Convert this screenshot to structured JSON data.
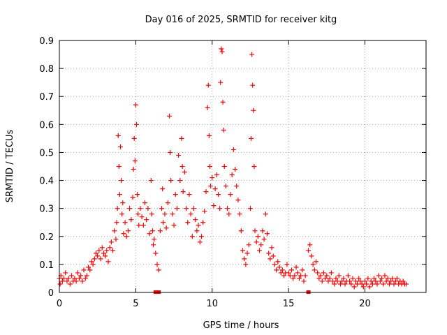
{
  "colors": {
    "series": "#ff0000",
    "axis": "#000000",
    "grid": "#a0a0a0",
    "background": "#ffffff"
  },
  "chart_data": {
    "type": "scatter",
    "title": "Day 016 of 2025, SRMTID for receiver kitg",
    "xlabel": "GPS time / hours",
    "ylabel": "SRMTID / TECUs",
    "xlim": [
      0,
      24
    ],
    "ylim": [
      0,
      0.9
    ],
    "xticks": [
      0,
      5,
      10,
      15,
      20
    ],
    "yticks": [
      0,
      0.1,
      0.2,
      0.3,
      0.4,
      0.5,
      0.6,
      0.7,
      0.8,
      0.9
    ],
    "ytick_labels": [
      "0",
      "0.1",
      "0.2",
      "0.3",
      "0.4",
      "0.5",
      "0.6",
      "0.7",
      "0.8",
      "0.9"
    ],
    "grid": true,
    "marker": "plus",
    "series": [
      {
        "name": "SRMTID",
        "color": "#ff0000",
        "points": [
          [
            0.0,
            0.05
          ],
          [
            0.05,
            0.03
          ],
          [
            0.1,
            0.06
          ],
          [
            0.2,
            0.04
          ],
          [
            0.3,
            0.05
          ],
          [
            0.4,
            0.07
          ],
          [
            0.5,
            0.04
          ],
          [
            0.6,
            0.05
          ],
          [
            0.7,
            0.03
          ],
          [
            0.8,
            0.06
          ],
          [
            0.9,
            0.04
          ],
          [
            1.0,
            0.05
          ],
          [
            1.1,
            0.04
          ],
          [
            1.2,
            0.07
          ],
          [
            1.3,
            0.05
          ],
          [
            1.4,
            0.06
          ],
          [
            1.5,
            0.04
          ],
          [
            1.6,
            0.08
          ],
          [
            1.7,
            0.05
          ],
          [
            1.8,
            0.06
          ],
          [
            1.9,
            0.09
          ],
          [
            2.0,
            0.08
          ],
          [
            2.1,
            0.11
          ],
          [
            2.2,
            0.1
          ],
          [
            2.3,
            0.12
          ],
          [
            2.4,
            0.14
          ],
          [
            2.5,
            0.13
          ],
          [
            2.6,
            0.15
          ],
          [
            2.7,
            0.12
          ],
          [
            2.8,
            0.16
          ],
          [
            2.9,
            0.14
          ],
          [
            3.0,
            0.13
          ],
          [
            3.1,
            0.15
          ],
          [
            3.2,
            0.11
          ],
          [
            3.3,
            0.16
          ],
          [
            3.4,
            0.18
          ],
          [
            3.5,
            0.15
          ],
          [
            3.6,
            0.22
          ],
          [
            3.7,
            0.19
          ],
          [
            3.75,
            0.25
          ],
          [
            3.8,
            0.3
          ],
          [
            3.85,
            0.56
          ],
          [
            3.9,
            0.45
          ],
          [
            3.95,
            0.35
          ],
          [
            4.0,
            0.52
          ],
          [
            4.05,
            0.4
          ],
          [
            4.1,
            0.28
          ],
          [
            4.15,
            0.32
          ],
          [
            4.2,
            0.21
          ],
          [
            4.3,
            0.25
          ],
          [
            4.4,
            0.2
          ],
          [
            4.5,
            0.22
          ],
          [
            4.6,
            0.3
          ],
          [
            4.7,
            0.26
          ],
          [
            4.8,
            0.34
          ],
          [
            4.85,
            0.44
          ],
          [
            4.9,
            0.55
          ],
          [
            4.95,
            0.47
          ],
          [
            5.0,
            0.67
          ],
          [
            5.05,
            0.6
          ],
          [
            5.1,
            0.35
          ],
          [
            5.15,
            0.28
          ],
          [
            5.2,
            0.24
          ],
          [
            5.3,
            0.3
          ],
          [
            5.4,
            0.27
          ],
          [
            5.5,
            0.24
          ],
          [
            5.6,
            0.32
          ],
          [
            5.7,
            0.26
          ],
          [
            5.8,
            0.3
          ],
          [
            5.9,
            0.21
          ],
          [
            6.0,
            0.4
          ],
          [
            6.05,
            0.28
          ],
          [
            6.1,
            0.22
          ],
          [
            6.15,
            0.17
          ],
          [
            6.2,
            0.19
          ],
          [
            6.3,
            0.14
          ],
          [
            6.4,
            0.1
          ],
          [
            6.5,
            0.08
          ],
          [
            6.6,
            0.22
          ],
          [
            6.7,
            0.3
          ],
          [
            6.75,
            0.37
          ],
          [
            6.8,
            0.25
          ],
          [
            6.9,
            0.28
          ],
          [
            7.0,
            0.23
          ],
          [
            7.1,
            0.32
          ],
          [
            7.2,
            0.63
          ],
          [
            7.25,
            0.5
          ],
          [
            7.3,
            0.4
          ],
          [
            7.4,
            0.28
          ],
          [
            7.5,
            0.24
          ],
          [
            7.6,
            0.35
          ],
          [
            7.7,
            0.3
          ],
          [
            7.8,
            0.49
          ],
          [
            7.9,
            0.4
          ],
          [
            8.0,
            0.55
          ],
          [
            8.05,
            0.45
          ],
          [
            8.1,
            0.36
          ],
          [
            8.2,
            0.43
          ],
          [
            8.3,
            0.3
          ],
          [
            8.4,
            0.25
          ],
          [
            8.5,
            0.35
          ],
          [
            8.6,
            0.28
          ],
          [
            8.7,
            0.2
          ],
          [
            8.8,
            0.3
          ],
          [
            8.9,
            0.26
          ],
          [
            9.0,
            0.22
          ],
          [
            9.1,
            0.24
          ],
          [
            9.2,
            0.18
          ],
          [
            9.3,
            0.2
          ],
          [
            9.4,
            0.25
          ],
          [
            9.5,
            0.29
          ],
          [
            9.6,
            0.36
          ],
          [
            9.7,
            0.66
          ],
          [
            9.75,
            0.74
          ],
          [
            9.8,
            0.56
          ],
          [
            9.85,
            0.45
          ],
          [
            9.9,
            0.38
          ],
          [
            10.0,
            0.41
          ],
          [
            10.1,
            0.31
          ],
          [
            10.2,
            0.37
          ],
          [
            10.3,
            0.42
          ],
          [
            10.4,
            0.35
          ],
          [
            10.5,
            0.3
          ],
          [
            10.55,
            0.75
          ],
          [
            10.6,
            0.87
          ],
          [
            10.65,
            0.86
          ],
          [
            10.7,
            0.68
          ],
          [
            10.75,
            0.58
          ],
          [
            10.8,
            0.45
          ],
          [
            10.9,
            0.38
          ],
          [
            11.0,
            0.3
          ],
          [
            11.1,
            0.28
          ],
          [
            11.2,
            0.35
          ],
          [
            11.3,
            0.42
          ],
          [
            11.4,
            0.51
          ],
          [
            11.5,
            0.44
          ],
          [
            11.6,
            0.38
          ],
          [
            11.7,
            0.33
          ],
          [
            11.8,
            0.28
          ],
          [
            11.9,
            0.22
          ],
          [
            12.0,
            0.15
          ],
          [
            12.1,
            0.12
          ],
          [
            12.2,
            0.1
          ],
          [
            12.3,
            0.14
          ],
          [
            12.4,
            0.17
          ],
          [
            12.5,
            0.3
          ],
          [
            12.55,
            0.55
          ],
          [
            12.6,
            0.85
          ],
          [
            12.65,
            0.74
          ],
          [
            12.7,
            0.65
          ],
          [
            12.75,
            0.45
          ],
          [
            12.8,
            0.22
          ],
          [
            12.9,
            0.18
          ],
          [
            13.0,
            0.2
          ],
          [
            13.1,
            0.15
          ],
          [
            13.2,
            0.17
          ],
          [
            13.3,
            0.22
          ],
          [
            13.4,
            0.19
          ],
          [
            13.5,
            0.28
          ],
          [
            13.6,
            0.21
          ],
          [
            13.7,
            0.14
          ],
          [
            13.8,
            0.12
          ],
          [
            13.9,
            0.16
          ],
          [
            14.0,
            0.13
          ],
          [
            14.1,
            0.1
          ],
          [
            14.2,
            0.08
          ],
          [
            14.3,
            0.11
          ],
          [
            14.4,
            0.09
          ],
          [
            14.5,
            0.07
          ],
          [
            14.6,
            0.08
          ],
          [
            14.7,
            0.06
          ],
          [
            14.8,
            0.07
          ],
          [
            14.9,
            0.1
          ],
          [
            15.0,
            0.07
          ],
          [
            15.1,
            0.06
          ],
          [
            15.2,
            0.08
          ],
          [
            15.3,
            0.05
          ],
          [
            15.4,
            0.06
          ],
          [
            15.5,
            0.09
          ],
          [
            15.6,
            0.07
          ],
          [
            15.7,
            0.05
          ],
          [
            15.8,
            0.06
          ],
          [
            15.9,
            0.08
          ],
          [
            16.0,
            0.04
          ],
          [
            16.1,
            0.06
          ],
          [
            16.3,
            0.15
          ],
          [
            16.4,
            0.17
          ],
          [
            16.5,
            0.13
          ],
          [
            16.6,
            0.1
          ],
          [
            16.7,
            0.08
          ],
          [
            16.8,
            0.11
          ],
          [
            16.9,
            0.07
          ],
          [
            17.0,
            0.05
          ],
          [
            17.1,
            0.06
          ],
          [
            17.2,
            0.04
          ],
          [
            17.3,
            0.07
          ],
          [
            17.4,
            0.05
          ],
          [
            17.5,
            0.06
          ],
          [
            17.6,
            0.04
          ],
          [
            17.7,
            0.05
          ],
          [
            17.8,
            0.07
          ],
          [
            17.9,
            0.04
          ],
          [
            18.0,
            0.03
          ],
          [
            18.1,
            0.05
          ],
          [
            18.2,
            0.04
          ],
          [
            18.3,
            0.06
          ],
          [
            18.4,
            0.03
          ],
          [
            18.5,
            0.04
          ],
          [
            18.6,
            0.05
          ],
          [
            18.7,
            0.03
          ],
          [
            18.8,
            0.04
          ],
          [
            18.9,
            0.06
          ],
          [
            19.0,
            0.04
          ],
          [
            19.1,
            0.03
          ],
          [
            19.2,
            0.05
          ],
          [
            19.3,
            0.02
          ],
          [
            19.4,
            0.04
          ],
          [
            19.5,
            0.03
          ],
          [
            19.6,
            0.05
          ],
          [
            19.7,
            0.04
          ],
          [
            19.8,
            0.03
          ],
          [
            19.9,
            0.02
          ],
          [
            20.0,
            0.04
          ],
          [
            20.1,
            0.03
          ],
          [
            20.2,
            0.05
          ],
          [
            20.3,
            0.02
          ],
          [
            20.4,
            0.04
          ],
          [
            20.5,
            0.03
          ],
          [
            20.6,
            0.05
          ],
          [
            20.7,
            0.04
          ],
          [
            20.8,
            0.03
          ],
          [
            20.9,
            0.06
          ],
          [
            21.0,
            0.04
          ],
          [
            21.1,
            0.05
          ],
          [
            21.2,
            0.03
          ],
          [
            21.3,
            0.06
          ],
          [
            21.4,
            0.04
          ],
          [
            21.5,
            0.05
          ],
          [
            21.6,
            0.03
          ],
          [
            21.7,
            0.04
          ],
          [
            21.8,
            0.05
          ],
          [
            21.9,
            0.03
          ],
          [
            22.0,
            0.04
          ],
          [
            22.1,
            0.05
          ],
          [
            22.2,
            0.03
          ],
          [
            22.3,
            0.04
          ],
          [
            22.4,
            0.03
          ],
          [
            22.5,
            0.04
          ],
          [
            22.6,
            0.03
          ],
          [
            22.7,
            0.03
          ]
        ]
      }
    ],
    "baseline_markers": [
      6.3,
      6.4,
      6.5,
      16.3
    ]
  }
}
